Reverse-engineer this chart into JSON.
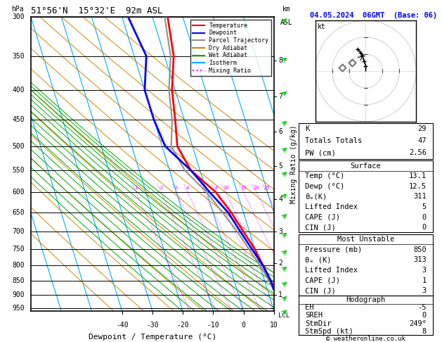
{
  "title_left": "51°56'N  15°32'E  92m ASL",
  "title_right": "04.05.2024  06GMT  (Base: 06)",
  "xlabel": "Dewpoint / Temperature (°C)",
  "ylabel_left": "hPa",
  "colors": {
    "temperature": "#ff0000",
    "dewpoint": "#0000ff",
    "parcel": "#909090",
    "dry_adiabat": "#cc8800",
    "wet_adiabat": "#00aa00",
    "isotherm": "#00aaff",
    "mixing_ratio": "#ff00ff"
  },
  "legend_items": [
    {
      "label": "Temperature",
      "color": "#ff0000",
      "style": "solid"
    },
    {
      "label": "Dewpoint",
      "color": "#0000ff",
      "style": "solid"
    },
    {
      "label": "Parcel Trajectory",
      "color": "#909090",
      "style": "solid"
    },
    {
      "label": "Dry Adiabat",
      "color": "#cc8800",
      "style": "solid"
    },
    {
      "label": "Wet Adiabat",
      "color": "#00aa00",
      "style": "solid"
    },
    {
      "label": "Isotherm",
      "color": "#00aaff",
      "style": "solid"
    },
    {
      "label": "Mixing Ratio",
      "color": "#ff00ff",
      "style": "dotted"
    }
  ],
  "pressure_levels": [
    300,
    350,
    400,
    450,
    500,
    550,
    600,
    650,
    700,
    750,
    800,
    850,
    900,
    950
  ],
  "xlim": [
    -40,
    40
  ],
  "p_min": 300,
  "p_max": 960,
  "skew_factor": 30,
  "temp_profile_p": [
    300,
    350,
    400,
    450,
    500,
    550,
    600,
    650,
    700,
    750,
    800,
    850,
    900,
    950,
    960
  ],
  "temp_profile_t": [
    5,
    3,
    -1,
    -3,
    -5,
    -3,
    3,
    6,
    8,
    10,
    11,
    12,
    13,
    13.1,
    13.1
  ],
  "dewp_profile_p": [
    300,
    350,
    400,
    450,
    500,
    550,
    600,
    650,
    700,
    750,
    800,
    850,
    900,
    950,
    960
  ],
  "dewp_profile_t": [
    -8,
    -6,
    -10,
    -10,
    -9,
    -3,
    1,
    5,
    7,
    9,
    11,
    12,
    12.3,
    12.5,
    12.5
  ],
  "parcel_profile_p": [
    300,
    350,
    400,
    450,
    500,
    550,
    600,
    700,
    750,
    800,
    850,
    900,
    950,
    960
  ],
  "parcel_profile_t": [
    4,
    2,
    -2,
    -4,
    -7,
    -5,
    0,
    6,
    8,
    10,
    11.5,
    12.2,
    12.5,
    12.5
  ],
  "mixing_ratio_values": [
    1,
    2,
    3,
    4,
    6,
    8,
    10,
    15,
    20,
    25
  ],
  "km_p": {
    "8": 356,
    "7": 411,
    "6": 472,
    "5": 541,
    "4": 617,
    "3": 701,
    "2": 795,
    "1": 899
  },
  "stats": {
    "K": 29,
    "Totals_Totals": 47,
    "PW_cm": 2.56,
    "Surface_Temp": 13.1,
    "Surface_Dewp": 12.5,
    "Surface_ThetaE": 311,
    "Surface_LI": 5,
    "Surface_CAPE": 0,
    "Surface_CIN": 0,
    "MU_Pressure": 850,
    "MU_ThetaE": 313,
    "MU_LI": 3,
    "MU_CAPE": 1,
    "MU_CIN": 3,
    "EH": -5,
    "SREH": 0,
    "StmDir": 249,
    "StmSpd": 8
  },
  "copyright": "© weatheronline.co.uk"
}
